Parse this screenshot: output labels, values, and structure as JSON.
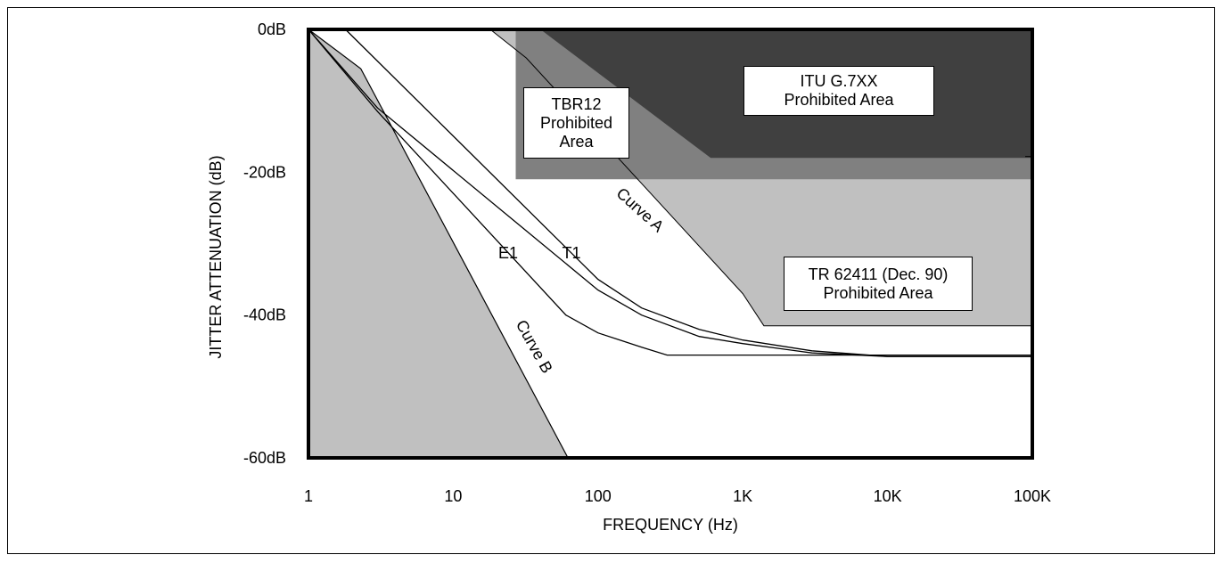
{
  "chart_data": {
    "type": "line",
    "title": "",
    "xlabel": "FREQUENCY (Hz)",
    "ylabel": "JITTER ATTENUATION (dB)",
    "xscale": "log",
    "xlim": [
      1,
      100000
    ],
    "ylim": [
      -60,
      0
    ],
    "x_tick_values": [
      1,
      10,
      100,
      1000,
      10000,
      100000
    ],
    "x_tick_labels": [
      "1",
      "10",
      "100",
      "1K",
      "10K",
      "100K"
    ],
    "y_tick_values": [
      0,
      -20,
      -40,
      -60
    ],
    "y_tick_labels": [
      "0dB",
      "-20dB",
      "-40dB",
      "-60dB"
    ],
    "grid": false,
    "regions": [
      {
        "name": "TR 62411 (Dec. 90) Prohibited Area",
        "label_lines": [
          "TR 62411 (Dec. 90)",
          "Prohibited Area"
        ],
        "color": "#c0c0c0",
        "boundary": [
          [
            18,
            0
          ],
          [
            32,
            -4
          ],
          [
            1000,
            -37
          ],
          [
            1400,
            -41.5
          ],
          [
            100000,
            -41.5
          ]
        ]
      },
      {
        "name": "TBR12 Prohibited Area",
        "label_lines": [
          "TBR12",
          "Prohibited",
          "Area"
        ],
        "color": "#808080",
        "boundary": [
          [
            27,
            0
          ],
          [
            27,
            -21
          ],
          [
            100000,
            -21
          ]
        ]
      },
      {
        "name": "ITU G.7XX Prohibited Area",
        "label_lines": [
          "ITU G.7XX",
          "Prohibited Area"
        ],
        "color": "#404040",
        "boundary": [
          [
            40,
            0
          ],
          [
            600,
            -18
          ],
          [
            100000,
            -18
          ]
        ]
      },
      {
        "name": "Curve B",
        "label": "Curve B",
        "color": "#c0c0c0",
        "boundary": [
          [
            1,
            0
          ],
          [
            2.3,
            -5.5
          ],
          [
            62,
            -60
          ]
        ]
      }
    ],
    "series": [
      {
        "name": "T1",
        "values": [
          [
            1,
            0
          ],
          [
            3,
            -11
          ],
          [
            100,
            -36.5
          ],
          [
            200,
            -40
          ],
          [
            500,
            -43
          ],
          [
            1000,
            -44
          ],
          [
            3000,
            -45.3
          ],
          [
            10000,
            -45.8
          ],
          [
            100000,
            -45.8
          ]
        ]
      },
      {
        "name": "E1",
        "values": [
          [
            1,
            0
          ],
          [
            3,
            -11.5
          ],
          [
            60,
            -40
          ],
          [
            100,
            -42.5
          ],
          [
            200,
            -44.5
          ],
          [
            300,
            -45.6
          ],
          [
            100000,
            -45.6
          ]
        ]
      },
      {
        "name": "Curve A",
        "values": [
          [
            1.8,
            0
          ],
          [
            100,
            -35
          ],
          [
            200,
            -39
          ],
          [
            500,
            -42
          ],
          [
            1000,
            -43.5
          ],
          [
            3000,
            -45
          ],
          [
            10000,
            -45.8
          ],
          [
            100000,
            -45.8
          ]
        ]
      }
    ]
  }
}
